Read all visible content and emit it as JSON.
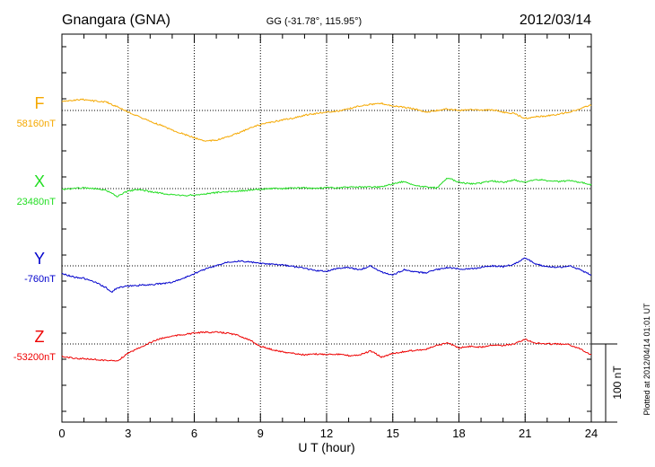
{
  "header": {
    "station": "Gnangara (GNA)",
    "coords": "GG (-31.78°, 115.95°)",
    "date": "2012/03/14"
  },
  "side_note": "Plotted at 2012/04/14 01:01  UT",
  "scale_label": "100 nT",
  "chart_data": {
    "type": "line",
    "xlabel": "U T (hour)",
    "xlim": [
      0,
      24
    ],
    "xticks": [
      0,
      3,
      6,
      9,
      12,
      15,
      18,
      21,
      24
    ],
    "scale_bar_nT": 100,
    "grid": true,
    "series": [
      {
        "name": "F",
        "baseline_label": "58160nT",
        "baseline": 58160,
        "color": "#f5a800",
        "x": [
          0,
          0.5,
          1,
          1.5,
          2,
          2.5,
          3,
          3.5,
          4,
          4.5,
          5,
          5.5,
          6,
          6.5,
          7,
          7.5,
          8,
          8.5,
          9,
          9.5,
          10,
          10.5,
          11,
          11.5,
          12,
          12.5,
          13,
          13.5,
          14,
          14.5,
          15,
          15.5,
          16,
          16.5,
          17,
          17.5,
          18,
          18.5,
          19,
          19.5,
          20,
          20.5,
          21,
          21.5,
          22,
          22.5,
          23,
          23.5,
          24
        ],
        "y": [
          58171,
          58173,
          58174,
          58172,
          58171,
          58165,
          58158,
          58152,
          58146,
          58141,
          58135,
          58130,
          58125,
          58121,
          58122,
          58126,
          58131,
          58137,
          58142,
          58145,
          58148,
          58150,
          58154,
          58156,
          58158,
          58159,
          58162,
          58166,
          58168,
          58169,
          58166,
          58164,
          58162,
          58158,
          58160,
          58162,
          58160,
          58161,
          58160,
          58161,
          58158,
          58156,
          58150,
          58152,
          58153,
          58155,
          58158,
          58162,
          58167
        ]
      },
      {
        "name": "X",
        "baseline_label": "23480nT",
        "baseline": 23480,
        "color": "#22dd22",
        "x": [
          0,
          0.5,
          1,
          1.5,
          2,
          2.5,
          3,
          3.5,
          4,
          4.5,
          5,
          5.5,
          6,
          6.5,
          7,
          7.5,
          8,
          8.5,
          9,
          9.5,
          10,
          10.5,
          11,
          11.5,
          12,
          12.5,
          13,
          13.5,
          14,
          14.5,
          15,
          15.5,
          16,
          16.5,
          17,
          17.5,
          18,
          18.5,
          19,
          19.5,
          20,
          20.5,
          21,
          21.5,
          22,
          22.5,
          23,
          23.5,
          24
        ],
        "y": [
          23479,
          23480,
          23481,
          23480,
          23478,
          23470,
          23477,
          23479,
          23476,
          23474,
          23472,
          23471,
          23472,
          23473,
          23475,
          23476,
          23477,
          23478,
          23479,
          23480,
          23480,
          23481,
          23481,
          23480,
          23481,
          23481,
          23482,
          23482,
          23482,
          23482,
          23486,
          23489,
          23484,
          23482,
          23481,
          23494,
          23488,
          23486,
          23487,
          23490,
          23488,
          23491,
          23488,
          23492,
          23490,
          23489,
          23490,
          23488,
          23485
        ]
      },
      {
        "name": "Y",
        "baseline_label": "-760nT",
        "baseline": -760,
        "color": "#0000cc",
        "x": [
          0,
          0.5,
          1,
          1.5,
          2,
          2.25,
          2.5,
          3,
          3.5,
          4,
          4.5,
          5,
          5.5,
          6,
          6.5,
          7,
          7.5,
          8,
          8.5,
          9,
          9.5,
          10,
          10.5,
          11,
          11.5,
          12,
          12.5,
          13,
          13.5,
          14,
          14.5,
          15,
          15.5,
          16,
          16.5,
          17,
          17.5,
          18,
          18.5,
          19,
          19.5,
          20,
          20.5,
          21,
          21.5,
          22,
          22.5,
          23,
          23.5,
          24
        ],
        "y": [
          -770,
          -774,
          -776,
          -781,
          -788,
          -794,
          -788,
          -786,
          -785,
          -784,
          -783,
          -781,
          -776,
          -770,
          -764,
          -760,
          -755,
          -754,
          -755,
          -757,
          -758,
          -759,
          -761,
          -763,
          -766,
          -767,
          -763,
          -762,
          -765,
          -760,
          -768,
          -772,
          -765,
          -768,
          -769,
          -765,
          -762,
          -764,
          -764,
          -762,
          -760,
          -761,
          -758,
          -750,
          -758,
          -761,
          -762,
          -760,
          -765,
          -772
        ]
      },
      {
        "name": "Z",
        "baseline_label": "-53200nT",
        "baseline": -53200,
        "color": "#ee0000",
        "x": [
          0,
          0.5,
          1,
          1.5,
          2,
          2.5,
          3,
          3.5,
          4,
          4.5,
          5,
          5.5,
          6,
          6.5,
          7,
          7.5,
          8,
          8.5,
          9,
          9.5,
          10,
          10.5,
          11,
          11.5,
          12,
          12.5,
          13,
          13.5,
          14,
          14.5,
          15,
          15.5,
          16,
          16.5,
          17,
          17.5,
          18,
          18.5,
          19,
          19.5,
          20,
          20.5,
          21,
          21.5,
          22,
          22.5,
          23,
          23.5,
          24
        ],
        "y": [
          -53216,
          -53218,
          -53219,
          -53220,
          -53221,
          -53222,
          -53212,
          -53205,
          -53198,
          -53193,
          -53190,
          -53188,
          -53186,
          -53185,
          -53185,
          -53186,
          -53189,
          -53195,
          -53203,
          -53207,
          -53210,
          -53212,
          -53214,
          -53213,
          -53213,
          -53213,
          -53215,
          -53214,
          -53209,
          -53217,
          -53212,
          -53210,
          -53208,
          -53207,
          -53202,
          -53199,
          -53205,
          -53203,
          -53204,
          -53201,
          -53202,
          -53200,
          -53194,
          -53199,
          -53200,
          -53200,
          -53201,
          -53206,
          -53214
        ]
      }
    ]
  }
}
